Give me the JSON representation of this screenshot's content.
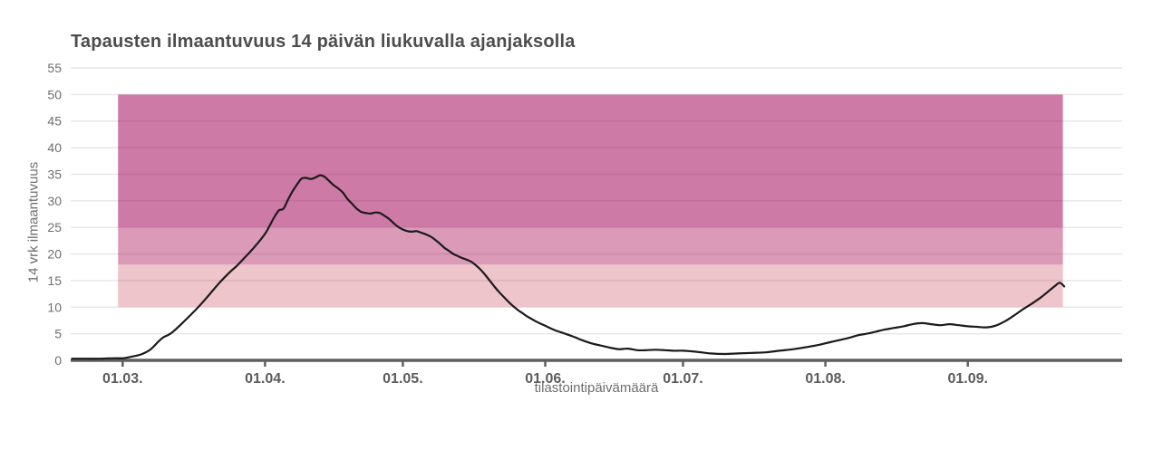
{
  "chart_data": {
    "type": "line",
    "title": "Tapausten ilmaantuvuus 14 päivän liukuvalla ajanjaksolla",
    "xlabel": "tilastointipäivämäärä",
    "ylabel": "14 vrk ilmaantuvuus",
    "ylim": [
      0,
      55
    ],
    "y_ticks": [
      0,
      5,
      10,
      15,
      20,
      25,
      30,
      35,
      40,
      45,
      50,
      55
    ],
    "x_ticks": [
      {
        "label": "01.03.",
        "d": 0
      },
      {
        "label": "01.04.",
        "d": 31
      },
      {
        "label": "01.05.",
        "d": 61
      },
      {
        "label": "01.06.",
        "d": 92
      },
      {
        "label": "01.07.",
        "d": 122
      },
      {
        "label": "01.08.",
        "d": 153
      },
      {
        "label": "01.09.",
        "d": 184
      }
    ],
    "x_domain_days": [
      -11.3,
      217.6
    ],
    "grid": "horizontal-only",
    "legend": "none",
    "background_color": "#ffffff",
    "line_color": "#1a1a1c",
    "gridline_color": "#e7e7e7",
    "axis_line_color": "#5f5f5f",
    "y_tick_label_color": "#6e6e6e",
    "x_tick_label_color": "#5c5c5c",
    "title_color": "#4d4d4d",
    "band_x_range_days": [
      -1,
      204.7
    ],
    "bands": [
      {
        "name": "threshold-band-low",
        "y_from": 10,
        "y_to": 18,
        "color": "#ecc0c5"
      },
      {
        "name": "threshold-band-mid",
        "y_from": 18,
        "y_to": 25,
        "color": "#d892b2"
      },
      {
        "name": "threshold-band-high",
        "y_from": 25,
        "y_to": 50,
        "color": "#ca6f9e"
      }
    ],
    "series": [
      {
        "name": "14 vrk ilmaantuvuus",
        "points": [
          [
            "18.02.",
            -11,
            0.3
          ],
          [
            "21.02.",
            -8,
            0.3
          ],
          [
            "24.02.",
            -5,
            0.3
          ],
          [
            "27.02.",
            -2,
            0.4
          ],
          [
            "01.03.",
            0,
            0.4
          ],
          [
            "03.03.",
            2,
            0.7
          ],
          [
            "05.03.",
            4,
            1.1
          ],
          [
            "07.03.",
            6,
            2.0
          ],
          [
            "09.03.",
            8,
            3.7
          ],
          [
            "10.03.",
            9,
            4.4
          ],
          [
            "11.03.",
            10,
            4.8
          ],
          [
            "12.03.",
            11,
            5.4
          ],
          [
            "14.03.",
            13,
            7.0
          ],
          [
            "16.03.",
            15,
            8.7
          ],
          [
            "18.03.",
            17,
            10.5
          ],
          [
            "20.03.",
            19,
            12.5
          ],
          [
            "22.03.",
            21,
            14.5
          ],
          [
            "24.03.",
            23,
            16.3
          ],
          [
            "26.03.",
            25,
            17.9
          ],
          [
            "28.03.",
            27,
            19.7
          ],
          [
            "30.03.",
            29,
            21.6
          ],
          [
            "01.04.",
            31,
            23.8
          ],
          [
            "02.04.",
            32,
            25.3
          ],
          [
            "03.04.",
            33,
            26.9
          ],
          [
            "04.04.",
            34,
            28.2
          ],
          [
            "05.04.",
            35,
            28.5
          ],
          [
            "06.04.",
            36,
            30.2
          ],
          [
            "07.04.",
            37,
            31.8
          ],
          [
            "08.04.",
            38,
            33.1
          ],
          [
            "09.04.",
            39,
            34.2
          ],
          [
            "10.04.",
            40,
            34.3
          ],
          [
            "11.04.",
            41,
            34.1
          ],
          [
            "12.04.",
            42,
            34.4
          ],
          [
            "13.04.",
            43,
            34.8
          ],
          [
            "14.04.",
            44,
            34.5
          ],
          [
            "15.04.",
            45,
            33.7
          ],
          [
            "16.04.",
            46,
            32.9
          ],
          [
            "17.04.",
            47,
            32.3
          ],
          [
            "18.04.",
            48,
            31.5
          ],
          [
            "19.04.",
            49,
            30.3
          ],
          [
            "20.04.",
            50,
            29.4
          ],
          [
            "21.04.",
            51,
            28.5
          ],
          [
            "22.04.",
            52,
            27.9
          ],
          [
            "23.04.",
            53,
            27.7
          ],
          [
            "24.04.",
            54,
            27.6
          ],
          [
            "25.04.",
            55,
            27.8
          ],
          [
            "26.04.",
            56,
            27.7
          ],
          [
            "27.04.",
            57,
            27.2
          ],
          [
            "28.04.",
            58,
            26.6
          ],
          [
            "29.04.",
            59,
            25.8
          ],
          [
            "30.04.",
            60,
            25.1
          ],
          [
            "01.05.",
            61,
            24.6
          ],
          [
            "02.05.",
            62,
            24.3
          ],
          [
            "03.05.",
            63,
            24.2
          ],
          [
            "04.05.",
            64,
            24.3
          ],
          [
            "05.05.",
            65,
            24.0
          ],
          [
            "06.05.",
            66,
            23.7
          ],
          [
            "07.05.",
            67,
            23.3
          ],
          [
            "08.05.",
            68,
            22.7
          ],
          [
            "09.05.",
            69,
            22.0
          ],
          [
            "10.05.",
            70,
            21.2
          ],
          [
            "11.05.",
            71,
            20.6
          ],
          [
            "12.05.",
            72,
            20.0
          ],
          [
            "13.05.",
            73,
            19.6
          ],
          [
            "14.05.",
            74,
            19.2
          ],
          [
            "15.05.",
            75,
            18.9
          ],
          [
            "16.05.",
            76,
            18.5
          ],
          [
            "17.05.",
            77,
            17.8
          ],
          [
            "18.05.",
            78,
            17.0
          ],
          [
            "19.05.",
            79,
            16.0
          ],
          [
            "20.05.",
            80,
            14.9
          ],
          [
            "21.05.",
            81,
            13.8
          ],
          [
            "22.05.",
            82,
            12.8
          ],
          [
            "23.05.",
            83,
            11.9
          ],
          [
            "24.05.",
            84,
            11.0
          ],
          [
            "25.05.",
            85,
            10.2
          ],
          [
            "26.05.",
            86,
            9.5
          ],
          [
            "27.05.",
            87,
            8.9
          ],
          [
            "28.05.",
            88,
            8.3
          ],
          [
            "29.05.",
            89,
            7.8
          ],
          [
            "30.05.",
            90,
            7.3
          ],
          [
            "31.05.",
            91,
            6.9
          ],
          [
            "01.06.",
            92,
            6.5
          ],
          [
            "03.06.",
            94,
            5.7
          ],
          [
            "05.06.",
            96,
            5.1
          ],
          [
            "07.06.",
            98,
            4.5
          ],
          [
            "09.06.",
            100,
            3.8
          ],
          [
            "11.06.",
            102,
            3.2
          ],
          [
            "13.06.",
            104,
            2.8
          ],
          [
            "15.06.",
            106,
            2.4
          ],
          [
            "17.06.",
            108,
            2.1
          ],
          [
            "19.06.",
            110,
            2.2
          ],
          [
            "21.06.",
            112,
            1.9
          ],
          [
            "23.06.",
            114,
            1.9
          ],
          [
            "25.06.",
            116,
            2.0
          ],
          [
            "27.06.",
            118,
            1.9
          ],
          [
            "29.06.",
            120,
            1.8
          ],
          [
            "01.07.",
            122,
            1.8
          ],
          [
            "04.07.",
            125,
            1.6
          ],
          [
            "07.07.",
            128,
            1.3
          ],
          [
            "10.07.",
            131,
            1.2
          ],
          [
            "13.07.",
            134,
            1.3
          ],
          [
            "16.07.",
            137,
            1.4
          ],
          [
            "19.07.",
            140,
            1.5
          ],
          [
            "22.07.",
            143,
            1.8
          ],
          [
            "25.07.",
            146,
            2.1
          ],
          [
            "28.07.",
            149,
            2.5
          ],
          [
            "31.07.",
            152,
            3.0
          ],
          [
            "02.08.",
            154,
            3.4
          ],
          [
            "04.08.",
            156,
            3.8
          ],
          [
            "06.08.",
            158,
            4.2
          ],
          [
            "08.08.",
            160,
            4.7
          ],
          [
            "10.08.",
            162,
            5.0
          ],
          [
            "12.08.",
            164,
            5.4
          ],
          [
            "14.08.",
            166,
            5.8
          ],
          [
            "16.08.",
            168,
            6.1
          ],
          [
            "18.08.",
            170,
            6.4
          ],
          [
            "20.08.",
            172,
            6.8
          ],
          [
            "22.08.",
            174,
            7.0
          ],
          [
            "24.08.",
            176,
            6.8
          ],
          [
            "26.08.",
            178,
            6.6
          ],
          [
            "28.08.",
            180,
            6.8
          ],
          [
            "30.08.",
            182,
            6.6
          ],
          [
            "01.09.",
            184,
            6.4
          ],
          [
            "03.09.",
            186,
            6.3
          ],
          [
            "05.09.",
            188,
            6.2
          ],
          [
            "07.09.",
            190,
            6.5
          ],
          [
            "09.09.",
            192,
            7.3
          ],
          [
            "11.09.",
            194,
            8.4
          ],
          [
            "13.09.",
            196,
            9.6
          ],
          [
            "15.09.",
            198,
            10.7
          ],
          [
            "17.09.",
            200,
            11.9
          ],
          [
            "19.09.",
            202,
            13.3
          ],
          [
            "20.09.",
            203,
            14.0
          ],
          [
            "21.09.",
            204,
            14.6
          ],
          [
            "22.09.",
            205,
            13.9
          ]
        ]
      }
    ]
  }
}
